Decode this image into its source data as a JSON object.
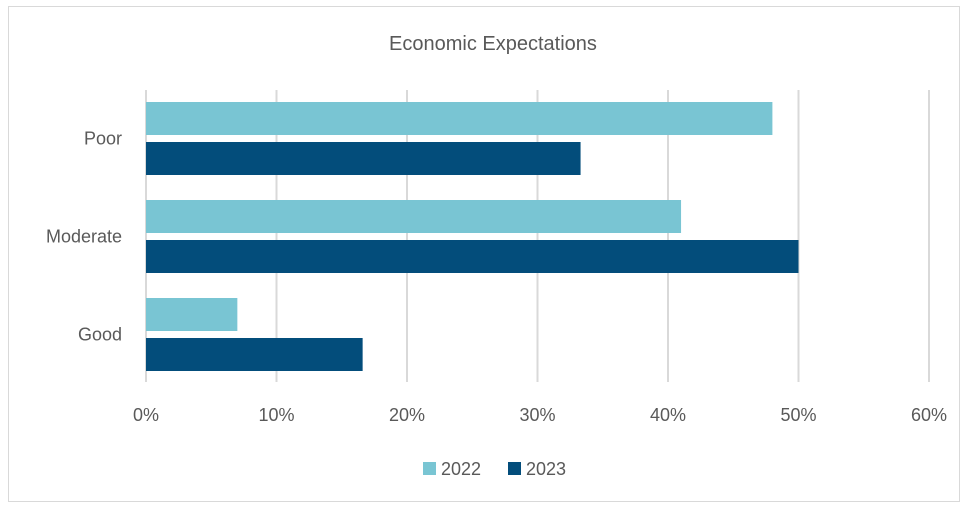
{
  "chart_data": {
    "type": "bar",
    "orientation": "horizontal",
    "title": "Economic Expectations",
    "categories": [
      "Poor",
      "Moderate",
      "Good"
    ],
    "series": [
      {
        "name": "2022",
        "color": "#79c5d3",
        "values": [
          48,
          41,
          7
        ]
      },
      {
        "name": "2023",
        "color": "#034d7b",
        "values": [
          33.3,
          50,
          16.6
        ]
      }
    ],
    "xlim": [
      0,
      60
    ],
    "x_ticks": [
      "0%",
      "10%",
      "20%",
      "30%",
      "40%",
      "50%",
      "60%"
    ],
    "grid": true,
    "legend_position": "bottom"
  }
}
